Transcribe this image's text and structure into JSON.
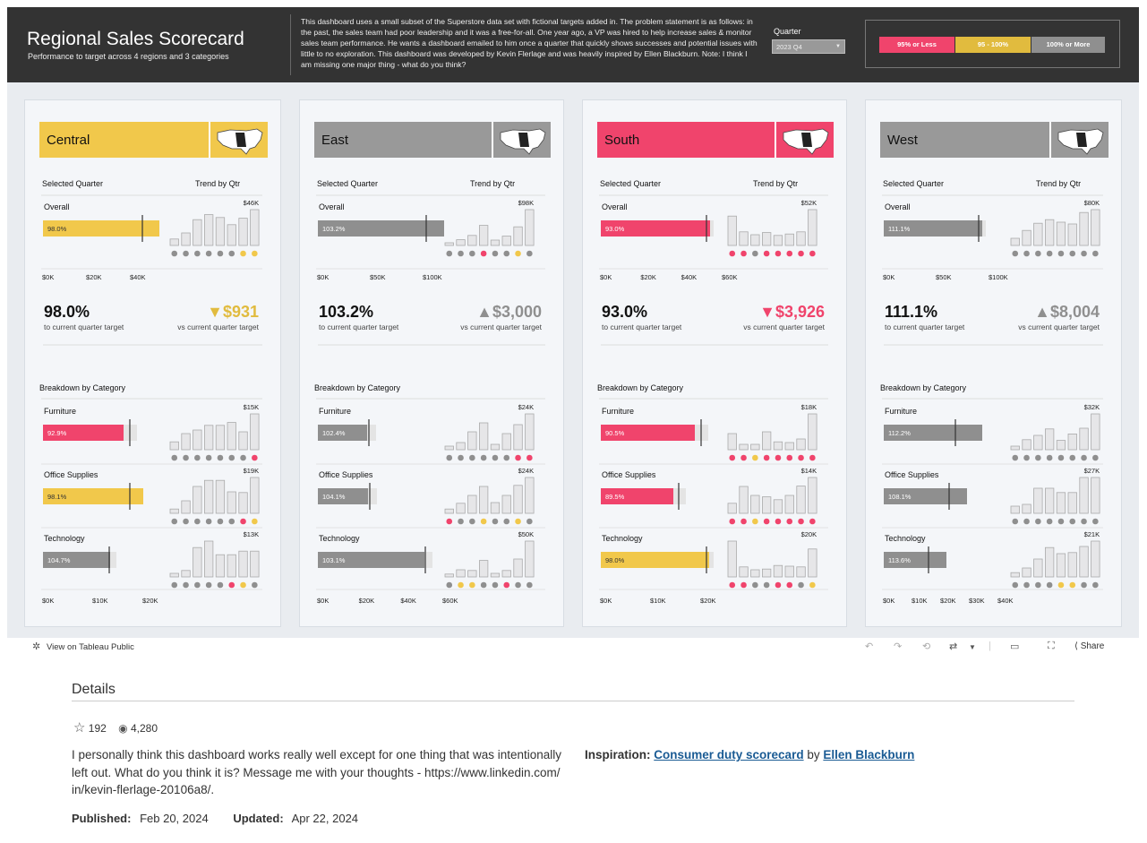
{
  "header": {
    "title": "Regional Sales Scorecard",
    "subtitle": "Performance to target across 4 regions and 3 categories",
    "description": "This dashboard uses a small subset of the Superstore data set with fictional targets added in. The problem statement is as follows: in the past, the sales team had poor leadership and it was a free-for-all. One year ago, a VP was hired to help increase sales & monitor sales team performance. He wants a dashboard emailed to him once a quarter that quickly shows successes and potential issues with little to no exploration. This dashboard was developed by Kevin Flerlage and was heavily inspired by Ellen Blackburn. Note: I think I am missing one major thing - what do you think?",
    "quarter_label": "Quarter",
    "quarter_value": "2023 Q4",
    "legend": [
      {
        "label": "95% or Less",
        "color": "#f0446c"
      },
      {
        "label": "95 - 100%",
        "color": "#e1bb3e"
      },
      {
        "label": "100% or More",
        "color": "#8f8f8f"
      }
    ]
  },
  "labels": {
    "selected_quarter": "Selected Quarter",
    "trend": "Trend by Qtr",
    "overall": "Overall",
    "to_target": "to current quarter target",
    "vs_target": "vs current quarter target",
    "breakdown": "Breakdown by Category"
  },
  "colors": {
    "red": "#f0446c",
    "yellow": "#f1c84b",
    "gray": "#8f8f8f",
    "ref_red": "#f0446c",
    "ref_yellow": "#f1c84b"
  },
  "regions": [
    {
      "name": "Central",
      "color": "#f1c84b",
      "overall": {
        "pct_label": "98.0%",
        "pct": 98.0,
        "status": "yellow",
        "trend_max_label": "$46K",
        "trend": [
          0.18,
          0.35,
          0.72,
          0.86,
          0.78,
          0.58,
          0.76,
          1.0
        ],
        "dots": [
          "gray",
          "gray",
          "gray",
          "gray",
          "gray",
          "gray",
          "yellow",
          "yellow"
        ]
      },
      "axis_top": [
        "$0K",
        "$20K",
        "$40K"
      ],
      "kpi": "98.0%",
      "delta": "$931",
      "delta_dir": "down",
      "delta_color": "#e1bb3e",
      "categories": [
        {
          "name": "Furniture",
          "pct_label": "92.9%",
          "status": "red",
          "trend_max_label": "$15K",
          "trend": [
            0.22,
            0.45,
            0.55,
            0.68,
            0.68,
            0.76,
            0.5,
            1.0
          ],
          "dots": [
            "gray",
            "gray",
            "gray",
            "gray",
            "gray",
            "gray",
            "gray",
            "red"
          ]
        },
        {
          "name": "Office Supplies",
          "pct_label": "98.1%",
          "status": "yellow",
          "trend_max_label": "$19K",
          "trend": [
            0.12,
            0.35,
            0.75,
            0.92,
            0.92,
            0.6,
            0.58,
            1.0
          ],
          "dots": [
            "gray",
            "gray",
            "gray",
            "gray",
            "gray",
            "gray",
            "red",
            "yellow"
          ]
        },
        {
          "name": "Technology",
          "pct_label": "104.7%",
          "status": "gray",
          "trend_max_label": "$13K",
          "trend": [
            0.1,
            0.18,
            0.82,
            1.0,
            0.62,
            0.62,
            0.72,
            0.72
          ],
          "dots": [
            "gray",
            "gray",
            "gray",
            "gray",
            "gray",
            "red",
            "yellow",
            "gray"
          ]
        }
      ],
      "axis_bottom": [
        "$0K",
        "$10K",
        "$20K"
      ]
    },
    {
      "name": "East",
      "color": "#999999",
      "overall": {
        "pct_label": "103.2%",
        "pct": 103.2,
        "status": "gray",
        "trend_max_label": "$98K",
        "trend": [
          0.06,
          0.16,
          0.28,
          0.56,
          0.15,
          0.26,
          0.52,
          1.0
        ],
        "dots": [
          "gray",
          "gray",
          "gray",
          "red",
          "gray",
          "gray",
          "yellow",
          "gray"
        ]
      },
      "axis_top": [
        "$0K",
        "$50K",
        "$100K"
      ],
      "kpi": "103.2%",
      "delta": "$3,000",
      "delta_dir": "up",
      "delta_color": "#8f8f8f",
      "categories": [
        {
          "name": "Furniture",
          "pct_label": "102.4%",
          "status": "gray",
          "trend_max_label": "$24K",
          "trend": [
            0.1,
            0.2,
            0.5,
            0.75,
            0.15,
            0.45,
            0.7,
            1.0
          ],
          "dots": [
            "gray",
            "gray",
            "gray",
            "gray",
            "gray",
            "gray",
            "red",
            "red"
          ]
        },
        {
          "name": "Office Supplies",
          "pct_label": "104.1%",
          "status": "gray",
          "trend_max_label": "$24K",
          "trend": [
            0.12,
            0.28,
            0.5,
            0.75,
            0.3,
            0.5,
            0.78,
            1.0
          ],
          "dots": [
            "red",
            "gray",
            "gray",
            "yellow",
            "gray",
            "gray",
            "yellow",
            "gray"
          ]
        },
        {
          "name": "Technology",
          "pct_label": "103.1%",
          "status": "gray",
          "trend_max_label": "$50K",
          "trend": [
            0.08,
            0.2,
            0.18,
            0.46,
            0.1,
            0.18,
            0.5,
            1.0
          ],
          "dots": [
            "gray",
            "yellow",
            "yellow",
            "gray",
            "gray",
            "red",
            "gray",
            "gray"
          ]
        }
      ],
      "axis_bottom": [
        "$0K",
        "$20K",
        "$40K",
        "$60K"
      ]
    },
    {
      "name": "South",
      "color": "#f0446c",
      "overall": {
        "pct_label": "93.0%",
        "pct": 93.0,
        "status": "red",
        "trend_max_label": "$52K",
        "trend": [
          0.82,
          0.38,
          0.3,
          0.36,
          0.28,
          0.32,
          0.38,
          1.0
        ],
        "dots": [
          "red",
          "red",
          "gray",
          "red",
          "red",
          "red",
          "red",
          "red"
        ]
      },
      "axis_top": [
        "$0K",
        "$20K",
        "$40K",
        "$60K"
      ],
      "kpi": "93.0%",
      "delta": "$3,926",
      "delta_dir": "down",
      "delta_color": "#f0446c",
      "categories": [
        {
          "name": "Furniture",
          "pct_label": "90.5%",
          "status": "red",
          "trend_max_label": "$18K",
          "trend": [
            0.45,
            0.15,
            0.15,
            0.5,
            0.22,
            0.2,
            0.3,
            1.0
          ],
          "dots": [
            "red",
            "red",
            "yellow",
            "red",
            "red",
            "red",
            "red",
            "red"
          ]
        },
        {
          "name": "Office Supplies",
          "pct_label": "89.5%",
          "status": "red",
          "trend_max_label": "$14K",
          "trend": [
            0.28,
            0.75,
            0.5,
            0.46,
            0.38,
            0.5,
            0.76,
            1.0
          ],
          "dots": [
            "red",
            "red",
            "yellow",
            "red",
            "red",
            "red",
            "red",
            "red"
          ]
        },
        {
          "name": "Technology",
          "pct_label": "98.0%",
          "status": "yellow",
          "trend_max_label": "$20K",
          "trend": [
            1.0,
            0.28,
            0.2,
            0.22,
            0.32,
            0.3,
            0.28,
            0.78
          ],
          "dots": [
            "red",
            "red",
            "gray",
            "gray",
            "red",
            "red",
            "gray",
            "yellow"
          ]
        }
      ],
      "axis_bottom": [
        "$0K",
        "$10K",
        "$20K"
      ]
    },
    {
      "name": "West",
      "color": "#999999",
      "overall": {
        "pct_label": "111.1%",
        "pct": 111.1,
        "status": "gray",
        "trend_max_label": "$80K",
        "trend": [
          0.2,
          0.42,
          0.62,
          0.72,
          0.65,
          0.6,
          0.92,
          1.0
        ],
        "dots": [
          "gray",
          "gray",
          "gray",
          "gray",
          "gray",
          "gray",
          "gray",
          "gray"
        ]
      },
      "axis_top": [
        "$0K",
        "$50K",
        "$100K"
      ],
      "kpi": "111.1%",
      "delta": "$8,004",
      "delta_dir": "up",
      "delta_color": "#8f8f8f",
      "categories": [
        {
          "name": "Furniture",
          "pct_label": "112.2%",
          "status": "gray",
          "trend_max_label": "$32K",
          "trend": [
            0.1,
            0.28,
            0.4,
            0.58,
            0.26,
            0.44,
            0.6,
            1.0
          ],
          "dots": [
            "gray",
            "gray",
            "gray",
            "gray",
            "gray",
            "gray",
            "gray",
            "gray"
          ]
        },
        {
          "name": "Office Supplies",
          "pct_label": "108.1%",
          "status": "gray",
          "trend_max_label": "$27K",
          "trend": [
            0.2,
            0.25,
            0.7,
            0.7,
            0.58,
            0.58,
            1.0,
            1.0
          ],
          "dots": [
            "gray",
            "gray",
            "gray",
            "gray",
            "gray",
            "gray",
            "gray",
            "gray"
          ]
        },
        {
          "name": "Technology",
          "pct_label": "113.6%",
          "status": "gray",
          "trend_max_label": "$21K",
          "trend": [
            0.12,
            0.25,
            0.5,
            0.82,
            0.65,
            0.68,
            0.85,
            1.0
          ],
          "dots": [
            "gray",
            "gray",
            "gray",
            "gray",
            "yellow",
            "yellow",
            "gray",
            "gray"
          ]
        }
      ],
      "axis_bottom": [
        "$0K",
        "$10K",
        "$20K",
        "$30K",
        "$40K"
      ]
    }
  ],
  "toolbar": {
    "view_label": "View on Tableau Public",
    "share_label": "Share"
  },
  "details": {
    "title": "Details",
    "favorites": "192",
    "views": "4,280",
    "description": "I personally think this dashboard works really well except for one thing that was intentionally left out. What do you think it is? Message me with your thoughts - https://www.linkedin.com/ in/kevin-flerlage-20106a8/.",
    "inspiration_label": "Inspiration:",
    "inspiration_link": "Consumer duty scorecard",
    "by": "by",
    "author_link": "Ellen Blackburn",
    "published_label": "Published:",
    "published": "Feb 20, 2024",
    "updated_label": "Updated:",
    "updated": "Apr 22, 2024"
  }
}
